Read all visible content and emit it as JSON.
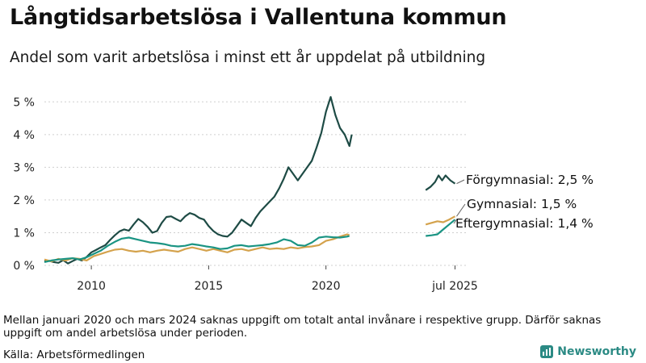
{
  "title": "Långtidsarbetslösa i Vallentuna kommun",
  "subtitle": "Andel som varit arbetslösa i minst ett år uppdelat på utbildning",
  "note": "Mellan januari 2020 och mars 2024 saknas uppgift om totalt antal invånare i respektive grupp. Därför saknas uppgift om andel arbetslösa under perioden.",
  "source": "Källa: Arbetsförmedlingen",
  "brand": {
    "name": "Newsworthy",
    "icon": "newsworthy-logo-icon",
    "color": "#2b8a84"
  },
  "chart_data": {
    "type": "line",
    "title": "Långtidsarbetslösa i Vallentuna kommun",
    "subtitle": "Andel som varit arbetslösa i minst ett år uppdelat på utbildning",
    "x_unit": "year",
    "xlim": [
      2008.0,
      2026.0
    ],
    "ylim": [
      0,
      5.5
    ],
    "y_ticks": [
      0,
      1,
      2,
      3,
      4,
      5
    ],
    "y_tick_labels": [
      "0 %",
      "1 %",
      "2 %",
      "3 %",
      "4 %",
      "5 %"
    ],
    "x_ticks": [
      2010,
      2015,
      2020,
      2025.5
    ],
    "x_tick_labels": [
      "2010",
      "2015",
      "2020",
      "jul 2025"
    ],
    "grid": "horizontal",
    "legend": "direct labels at right end",
    "series": [
      {
        "name": "Förgymnasial",
        "label": "Förgymnasial: 2,5 %",
        "color": "#1e4b45",
        "segments": [
          [
            [
              2008.0,
              0.12
            ],
            [
              2008.2,
              0.14
            ],
            [
              2008.4,
              0.1
            ],
            [
              2008.6,
              0.08
            ],
            [
              2008.8,
              0.16
            ],
            [
              2009.0,
              0.06
            ],
            [
              2009.2,
              0.13
            ],
            [
              2009.4,
              0.2
            ],
            [
              2009.6,
              0.15
            ],
            [
              2009.8,
              0.26
            ],
            [
              2010.0,
              0.4
            ],
            [
              2010.2,
              0.47
            ],
            [
              2010.4,
              0.55
            ],
            [
              2010.6,
              0.62
            ],
            [
              2010.8,
              0.78
            ],
            [
              2011.0,
              0.92
            ],
            [
              2011.2,
              1.04
            ],
            [
              2011.4,
              1.1
            ],
            [
              2011.6,
              1.06
            ],
            [
              2011.8,
              1.25
            ],
            [
              2012.0,
              1.42
            ],
            [
              2012.2,
              1.32
            ],
            [
              2012.4,
              1.18
            ],
            [
              2012.6,
              1.0
            ],
            [
              2012.8,
              1.05
            ],
            [
              2013.0,
              1.3
            ],
            [
              2013.2,
              1.48
            ],
            [
              2013.4,
              1.5
            ],
            [
              2013.6,
              1.42
            ],
            [
              2013.8,
              1.35
            ],
            [
              2014.0,
              1.5
            ],
            [
              2014.2,
              1.6
            ],
            [
              2014.4,
              1.55
            ],
            [
              2014.6,
              1.45
            ],
            [
              2014.8,
              1.4
            ],
            [
              2015.0,
              1.2
            ],
            [
              2015.2,
              1.05
            ],
            [
              2015.4,
              0.95
            ],
            [
              2015.6,
              0.9
            ],
            [
              2015.8,
              0.88
            ],
            [
              2016.0,
              1.0
            ],
            [
              2016.2,
              1.2
            ],
            [
              2016.4,
              1.4
            ],
            [
              2016.6,
              1.3
            ],
            [
              2016.8,
              1.2
            ],
            [
              2017.0,
              1.45
            ],
            [
              2017.2,
              1.65
            ],
            [
              2017.4,
              1.8
            ],
            [
              2017.6,
              1.95
            ],
            [
              2017.8,
              2.1
            ],
            [
              2018.0,
              2.35
            ],
            [
              2018.2,
              2.65
            ],
            [
              2018.4,
              3.0
            ],
            [
              2018.6,
              2.8
            ],
            [
              2018.8,
              2.6
            ],
            [
              2019.0,
              2.8
            ],
            [
              2019.2,
              3.0
            ],
            [
              2019.4,
              3.2
            ],
            [
              2019.6,
              3.6
            ],
            [
              2019.8,
              4.05
            ],
            [
              2020.0,
              4.7
            ],
            [
              2020.2,
              5.15
            ],
            [
              2020.4,
              4.6
            ],
            [
              2020.6,
              4.2
            ],
            [
              2020.8,
              4.0
            ],
            [
              2021.0,
              3.65
            ],
            [
              2021.1,
              4.0
            ]
          ],
          [
            [
              2024.25,
              2.3
            ],
            [
              2024.45,
              2.4
            ],
            [
              2024.65,
              2.55
            ],
            [
              2024.8,
              2.75
            ],
            [
              2024.95,
              2.6
            ],
            [
              2025.1,
              2.75
            ],
            [
              2025.3,
              2.6
            ],
            [
              2025.5,
              2.5
            ]
          ]
        ]
      },
      {
        "name": "Gymnasial",
        "label": "Gymnasial: 1,5 %",
        "color": "#d4a24c",
        "segments": [
          [
            [
              2008.0,
              0.18
            ],
            [
              2008.3,
              0.12
            ],
            [
              2008.6,
              0.2
            ],
            [
              2008.9,
              0.15
            ],
            [
              2009.2,
              0.22
            ],
            [
              2009.5,
              0.2
            ],
            [
              2009.8,
              0.15
            ],
            [
              2010.1,
              0.28
            ],
            [
              2010.4,
              0.35
            ],
            [
              2010.7,
              0.42
            ],
            [
              2011.0,
              0.48
            ],
            [
              2011.3,
              0.5
            ],
            [
              2011.6,
              0.45
            ],
            [
              2011.9,
              0.42
            ],
            [
              2012.2,
              0.45
            ],
            [
              2012.5,
              0.4
            ],
            [
              2012.8,
              0.45
            ],
            [
              2013.1,
              0.48
            ],
            [
              2013.4,
              0.45
            ],
            [
              2013.7,
              0.42
            ],
            [
              2014.0,
              0.5
            ],
            [
              2014.3,
              0.55
            ],
            [
              2014.6,
              0.5
            ],
            [
              2014.9,
              0.45
            ],
            [
              2015.2,
              0.5
            ],
            [
              2015.5,
              0.45
            ],
            [
              2015.8,
              0.4
            ],
            [
              2016.1,
              0.48
            ],
            [
              2016.4,
              0.5
            ],
            [
              2016.7,
              0.45
            ],
            [
              2017.0,
              0.5
            ],
            [
              2017.3,
              0.55
            ],
            [
              2017.6,
              0.5
            ],
            [
              2017.9,
              0.52
            ],
            [
              2018.2,
              0.5
            ],
            [
              2018.5,
              0.55
            ],
            [
              2018.8,
              0.52
            ],
            [
              2019.1,
              0.56
            ],
            [
              2019.4,
              0.58
            ],
            [
              2019.7,
              0.62
            ],
            [
              2020.0,
              0.75
            ],
            [
              2020.3,
              0.8
            ],
            [
              2020.6,
              0.88
            ],
            [
              2020.9,
              0.95
            ],
            [
              2021.0,
              0.92
            ]
          ],
          [
            [
              2024.25,
              1.25
            ],
            [
              2024.5,
              1.3
            ],
            [
              2024.75,
              1.35
            ],
            [
              2025.0,
              1.32
            ],
            [
              2025.25,
              1.4
            ],
            [
              2025.5,
              1.5
            ]
          ]
        ]
      },
      {
        "name": "Eftergymnasial",
        "label": "Eftergymnasial: 1,4 %",
        "color": "#1a9483",
        "segments": [
          [
            [
              2008.0,
              0.1
            ],
            [
              2008.3,
              0.15
            ],
            [
              2008.6,
              0.18
            ],
            [
              2008.9,
              0.2
            ],
            [
              2009.2,
              0.22
            ],
            [
              2009.5,
              0.18
            ],
            [
              2009.8,
              0.25
            ],
            [
              2010.1,
              0.35
            ],
            [
              2010.4,
              0.45
            ],
            [
              2010.7,
              0.6
            ],
            [
              2011.0,
              0.72
            ],
            [
              2011.3,
              0.82
            ],
            [
              2011.6,
              0.85
            ],
            [
              2011.9,
              0.8
            ],
            [
              2012.2,
              0.75
            ],
            [
              2012.5,
              0.7
            ],
            [
              2012.8,
              0.68
            ],
            [
              2013.1,
              0.65
            ],
            [
              2013.4,
              0.6
            ],
            [
              2013.7,
              0.58
            ],
            [
              2014.0,
              0.6
            ],
            [
              2014.3,
              0.65
            ],
            [
              2014.6,
              0.62
            ],
            [
              2014.9,
              0.58
            ],
            [
              2015.2,
              0.55
            ],
            [
              2015.5,
              0.5
            ],
            [
              2015.8,
              0.52
            ],
            [
              2016.1,
              0.6
            ],
            [
              2016.4,
              0.62
            ],
            [
              2016.7,
              0.58
            ],
            [
              2017.0,
              0.6
            ],
            [
              2017.3,
              0.62
            ],
            [
              2017.6,
              0.65
            ],
            [
              2017.9,
              0.7
            ],
            [
              2018.2,
              0.8
            ],
            [
              2018.5,
              0.75
            ],
            [
              2018.8,
              0.62
            ],
            [
              2019.1,
              0.6
            ],
            [
              2019.4,
              0.7
            ],
            [
              2019.7,
              0.85
            ],
            [
              2020.0,
              0.88
            ],
            [
              2020.3,
              0.86
            ],
            [
              2020.6,
              0.85
            ],
            [
              2020.9,
              0.88
            ],
            [
              2021.0,
              0.9
            ]
          ],
          [
            [
              2024.25,
              0.9
            ],
            [
              2024.5,
              0.92
            ],
            [
              2024.75,
              0.95
            ],
            [
              2025.0,
              1.1
            ],
            [
              2025.25,
              1.25
            ],
            [
              2025.5,
              1.4
            ]
          ]
        ]
      }
    ]
  }
}
